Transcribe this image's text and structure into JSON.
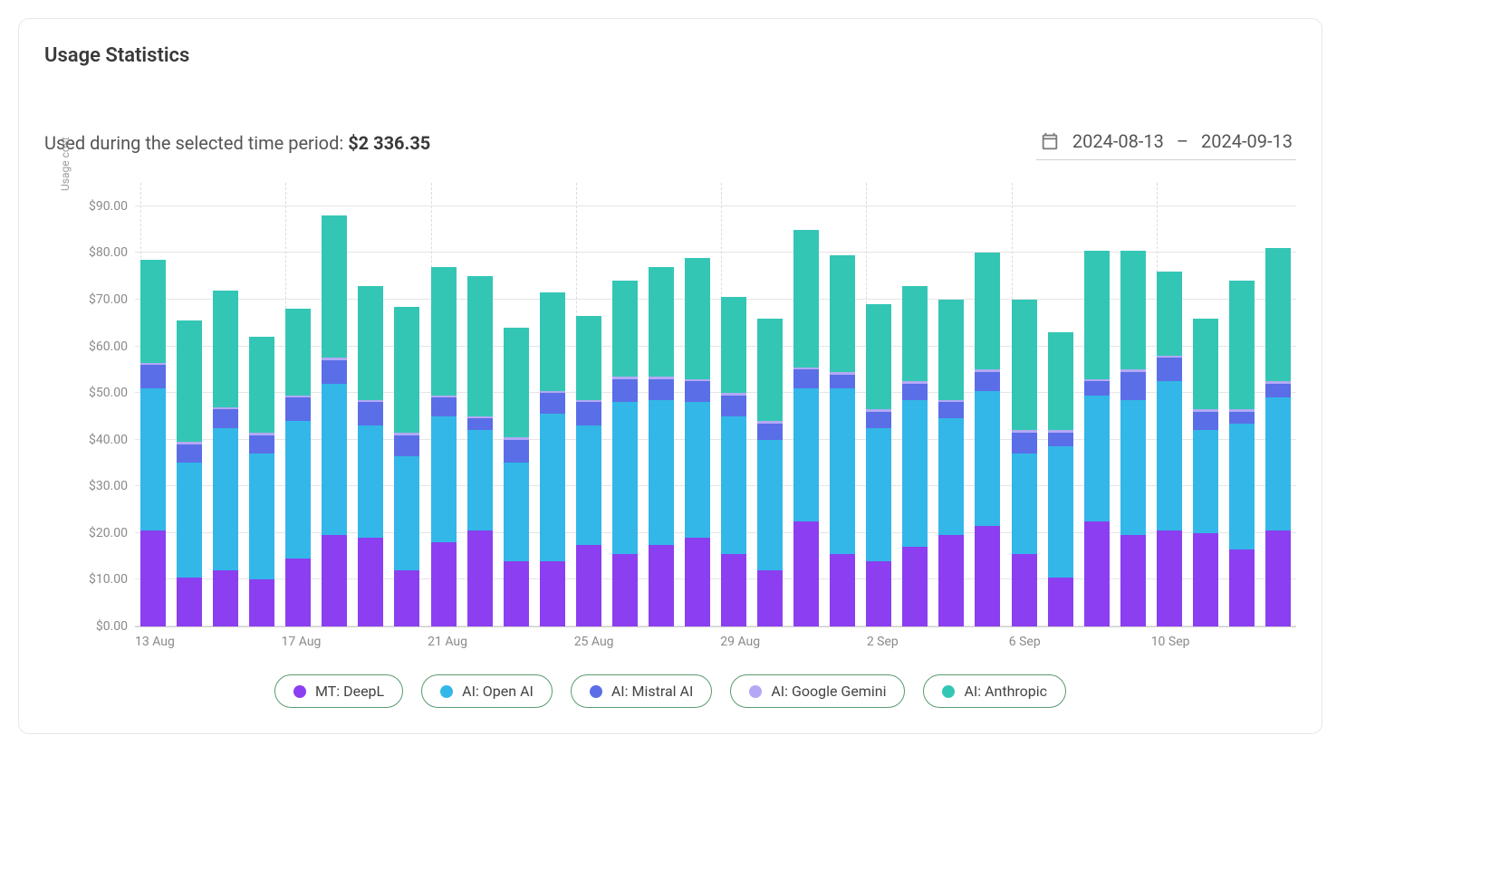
{
  "title": "Usage Statistics",
  "summary": {
    "prefix": "Used during the selected time period: ",
    "amount": "$2 336.35"
  },
  "date_range": {
    "start": "2024-08-13",
    "end": "2024-09-13",
    "separator": "–"
  },
  "chart": {
    "type": "stacked-bar",
    "y_axis_title": "Usage cost",
    "y_max": 95,
    "y_ticks": [
      0,
      10,
      20,
      30,
      40,
      50,
      60,
      70,
      80,
      90
    ],
    "y_tick_labels": [
      "$0.00",
      "$10.00",
      "$20.00",
      "$30.00",
      "$40.00",
      "$50.00",
      "$60.00",
      "$70.00",
      "$80.00",
      "$90.00"
    ],
    "x_tick_every": 4,
    "background_color": "#ffffff",
    "grid_color": "#e5e5e5",
    "vgrid_color": "#dcdcdc",
    "axis_label_color": "#8a8a8a",
    "axis_font_size": 14,
    "title_color": "#3a3a3a",
    "bar_width_ratio": 0.7,
    "series": [
      {
        "key": "deepl",
        "label": "MT: DeepL",
        "color": "#8b3ff0"
      },
      {
        "key": "openai",
        "label": "AI: Open AI",
        "color": "#33b7e8"
      },
      {
        "key": "mistral",
        "label": "AI: Mistral AI",
        "color": "#5a6ee8"
      },
      {
        "key": "gemini",
        "label": "AI: Google Gemini",
        "color": "#b4a8f5"
      },
      {
        "key": "anthropic",
        "label": "AI: Anthropic",
        "color": "#34c6b5"
      }
    ],
    "categories": [
      "13 Aug",
      "14 Aug",
      "15 Aug",
      "16 Aug",
      "17 Aug",
      "18 Aug",
      "19 Aug",
      "20 Aug",
      "21 Aug",
      "22 Aug",
      "23 Aug",
      "24 Aug",
      "25 Aug",
      "26 Aug",
      "27 Aug",
      "28 Aug",
      "29 Aug",
      "30 Aug",
      "31 Aug",
      "1 Sep",
      "2 Sep",
      "3 Sep",
      "4 Sep",
      "5 Sep",
      "6 Sep",
      "7 Sep",
      "8 Sep",
      "9 Sep",
      "10 Sep",
      "11 Sep",
      "12 Sep",
      "13 Sep"
    ],
    "data": [
      {
        "deepl": 20.5,
        "openai": 30.5,
        "mistral": 5.0,
        "gemini": 0.5,
        "anthropic": 22.0
      },
      {
        "deepl": 10.5,
        "openai": 24.5,
        "mistral": 4.0,
        "gemini": 0.5,
        "anthropic": 26.0
      },
      {
        "deepl": 12.0,
        "openai": 30.5,
        "mistral": 4.0,
        "gemini": 0.5,
        "anthropic": 25.0
      },
      {
        "deepl": 10.0,
        "openai": 27.0,
        "mistral": 4.0,
        "gemini": 0.5,
        "anthropic": 20.5
      },
      {
        "deepl": 14.5,
        "openai": 29.5,
        "mistral": 5.0,
        "gemini": 0.5,
        "anthropic": 18.5
      },
      {
        "deepl": 19.5,
        "openai": 32.5,
        "mistral": 5.0,
        "gemini": 0.5,
        "anthropic": 30.5
      },
      {
        "deepl": 19.0,
        "openai": 24.0,
        "mistral": 5.0,
        "gemini": 0.5,
        "anthropic": 24.5
      },
      {
        "deepl": 12.0,
        "openai": 24.5,
        "mistral": 4.5,
        "gemini": 0.5,
        "anthropic": 27.0
      },
      {
        "deepl": 18.0,
        "openai": 27.0,
        "mistral": 4.0,
        "gemini": 0.5,
        "anthropic": 27.5
      },
      {
        "deepl": 20.5,
        "openai": 21.5,
        "mistral": 2.5,
        "gemini": 0.5,
        "anthropic": 30.0
      },
      {
        "deepl": 14.0,
        "openai": 21.0,
        "mistral": 5.0,
        "gemini": 0.5,
        "anthropic": 23.5
      },
      {
        "deepl": 14.0,
        "openai": 31.5,
        "mistral": 4.5,
        "gemini": 0.5,
        "anthropic": 21.0
      },
      {
        "deepl": 17.5,
        "openai": 25.5,
        "mistral": 5.0,
        "gemini": 0.5,
        "anthropic": 18.0
      },
      {
        "deepl": 15.5,
        "openai": 32.5,
        "mistral": 5.0,
        "gemini": 0.5,
        "anthropic": 20.5
      },
      {
        "deepl": 17.5,
        "openai": 31.0,
        "mistral": 4.5,
        "gemini": 0.5,
        "anthropic": 23.5
      },
      {
        "deepl": 19.0,
        "openai": 29.0,
        "mistral": 4.5,
        "gemini": 0.5,
        "anthropic": 26.0
      },
      {
        "deepl": 15.5,
        "openai": 29.5,
        "mistral": 4.5,
        "gemini": 0.5,
        "anthropic": 20.5
      },
      {
        "deepl": 12.0,
        "openai": 28.0,
        "mistral": 3.5,
        "gemini": 0.5,
        "anthropic": 22.0
      },
      {
        "deepl": 22.5,
        "openai": 28.5,
        "mistral": 4.0,
        "gemini": 0.5,
        "anthropic": 29.5
      },
      {
        "deepl": 15.5,
        "openai": 35.5,
        "mistral": 3.0,
        "gemini": 0.5,
        "anthropic": 25.0
      },
      {
        "deepl": 14.0,
        "openai": 28.5,
        "mistral": 3.5,
        "gemini": 0.5,
        "anthropic": 22.5
      },
      {
        "deepl": 17.0,
        "openai": 31.5,
        "mistral": 3.5,
        "gemini": 0.5,
        "anthropic": 20.5
      },
      {
        "deepl": 19.5,
        "openai": 25.0,
        "mistral": 3.5,
        "gemini": 0.5,
        "anthropic": 21.5
      },
      {
        "deepl": 21.5,
        "openai": 29.0,
        "mistral": 4.0,
        "gemini": 0.5,
        "anthropic": 25.0
      },
      {
        "deepl": 15.5,
        "openai": 21.5,
        "mistral": 4.5,
        "gemini": 0.5,
        "anthropic": 28.0
      },
      {
        "deepl": 10.5,
        "openai": 28.0,
        "mistral": 3.0,
        "gemini": 0.5,
        "anthropic": 21.0
      },
      {
        "deepl": 22.5,
        "openai": 27.0,
        "mistral": 3.0,
        "gemini": 0.5,
        "anthropic": 27.5
      },
      {
        "deepl": 19.5,
        "openai": 29.0,
        "mistral": 6.0,
        "gemini": 0.5,
        "anthropic": 25.5
      },
      {
        "deepl": 20.5,
        "openai": 32.0,
        "mistral": 5.0,
        "gemini": 0.5,
        "anthropic": 18.0
      },
      {
        "deepl": 20.0,
        "openai": 22.0,
        "mistral": 4.0,
        "gemini": 0.5,
        "anthropic": 19.5
      },
      {
        "deepl": 16.5,
        "openai": 27.0,
        "mistral": 2.5,
        "gemini": 0.5,
        "anthropic": 27.5
      },
      {
        "deepl": 20.5,
        "openai": 28.5,
        "mistral": 3.0,
        "gemini": 0.5,
        "anthropic": 28.5
      }
    ]
  },
  "legend": {
    "border_color": "#5a9a6f"
  }
}
